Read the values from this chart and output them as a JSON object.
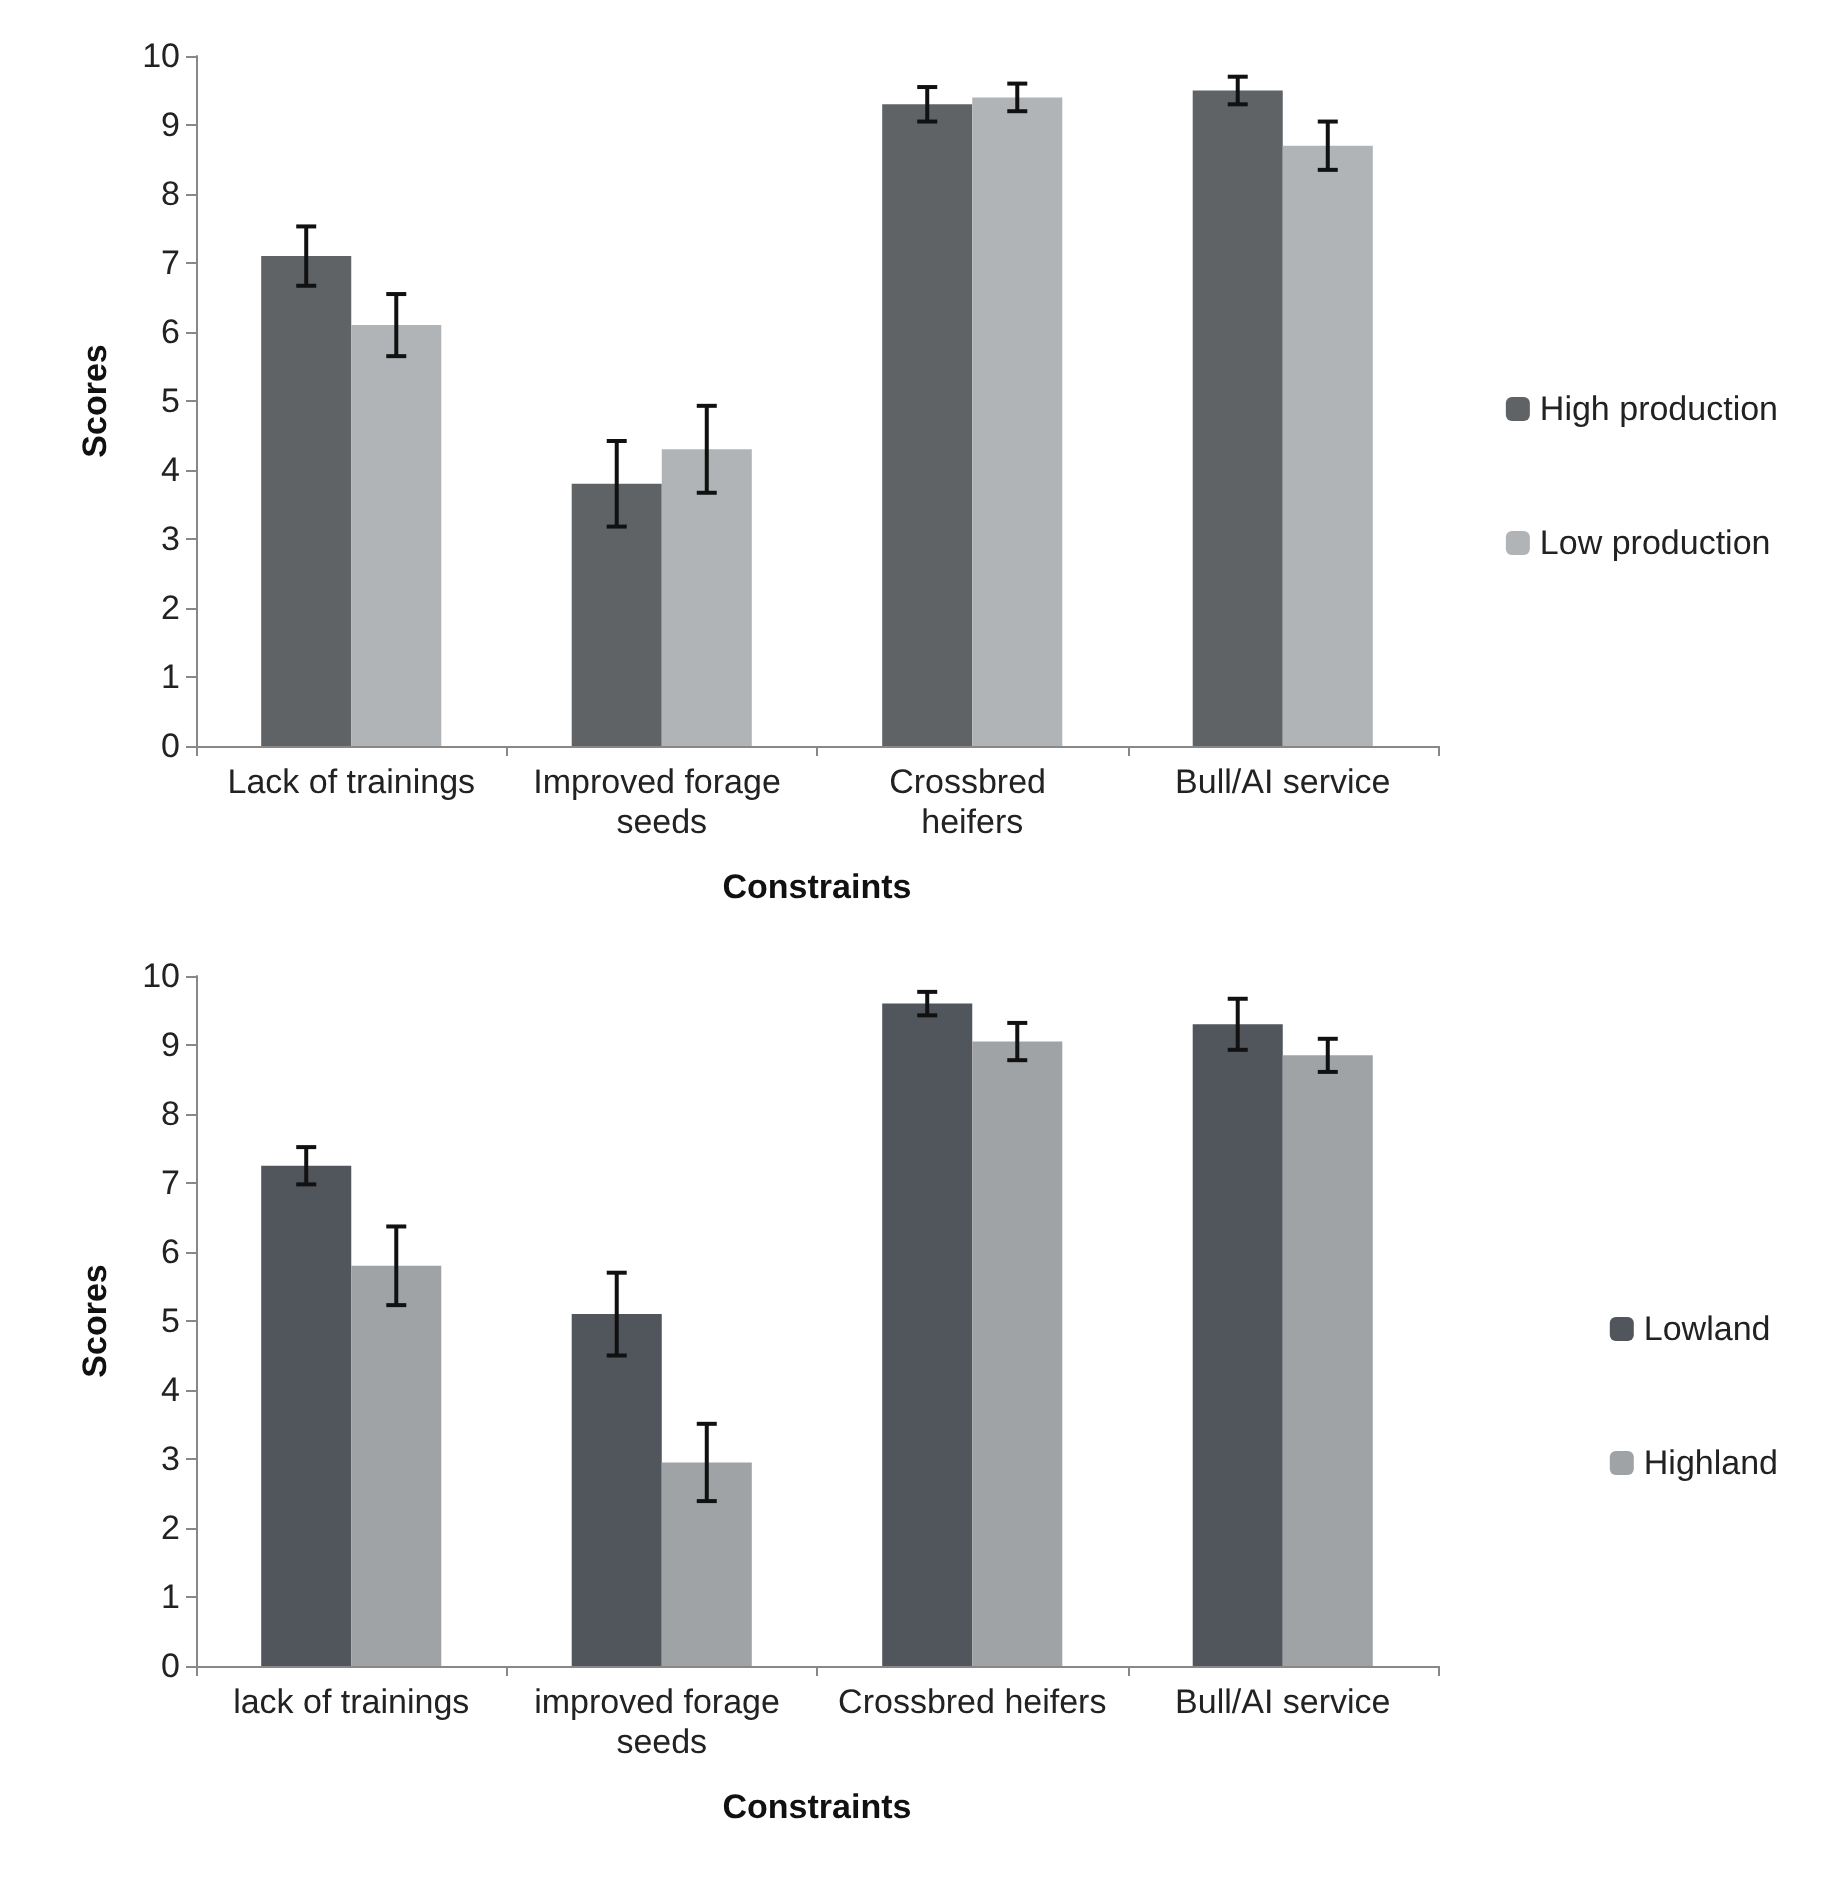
{
  "chart_data": [
    {
      "type": "bar",
      "xlabel": "Constraints",
      "ylabel": "Scores",
      "categories": [
        "Lack of trainings",
        "Improved forage seeds",
        "Crossbred heifers",
        "Bull/AI service"
      ],
      "series": [
        {
          "name": "High production",
          "color": "#5f6366",
          "values": [
            7.1,
            3.8,
            9.3,
            9.5
          ],
          "errors": [
            0.43,
            0.62,
            0.25,
            0.2
          ]
        },
        {
          "name": "Low production",
          "color": "#b0b4b6",
          "values": [
            6.1,
            4.3,
            9.4,
            8.7
          ],
          "errors": [
            0.45,
            0.63,
            0.2,
            0.35
          ]
        }
      ],
      "ylim": [
        0,
        10
      ],
      "yticks": [
        0,
        1,
        2,
        3,
        4,
        5,
        6,
        7,
        8,
        9,
        10
      ],
      "grid": false,
      "legend": "right"
    },
    {
      "type": "bar",
      "xlabel": "Constraints",
      "ylabel": "Scores",
      "categories": [
        "lack of trainings",
        "improved forage seeds",
        "Crossbred heifers",
        "Bull/AI service"
      ],
      "series": [
        {
          "name": "Lowland",
          "color": "#50565c",
          "values": [
            7.25,
            5.1,
            9.6,
            9.3
          ],
          "errors": [
            0.27,
            0.6,
            0.17,
            0.37
          ]
        },
        {
          "name": "Highland",
          "color": "#a0a3a6",
          "values": [
            5.8,
            2.95,
            9.05,
            8.85
          ],
          "errors": [
            0.57,
            0.56,
            0.27,
            0.24
          ]
        }
      ],
      "ylim": [
        0,
        10
      ],
      "yticks": [
        0,
        1,
        2,
        3,
        4,
        5,
        6,
        7,
        8,
        9,
        10
      ],
      "grid": false,
      "legend": "right"
    }
  ]
}
